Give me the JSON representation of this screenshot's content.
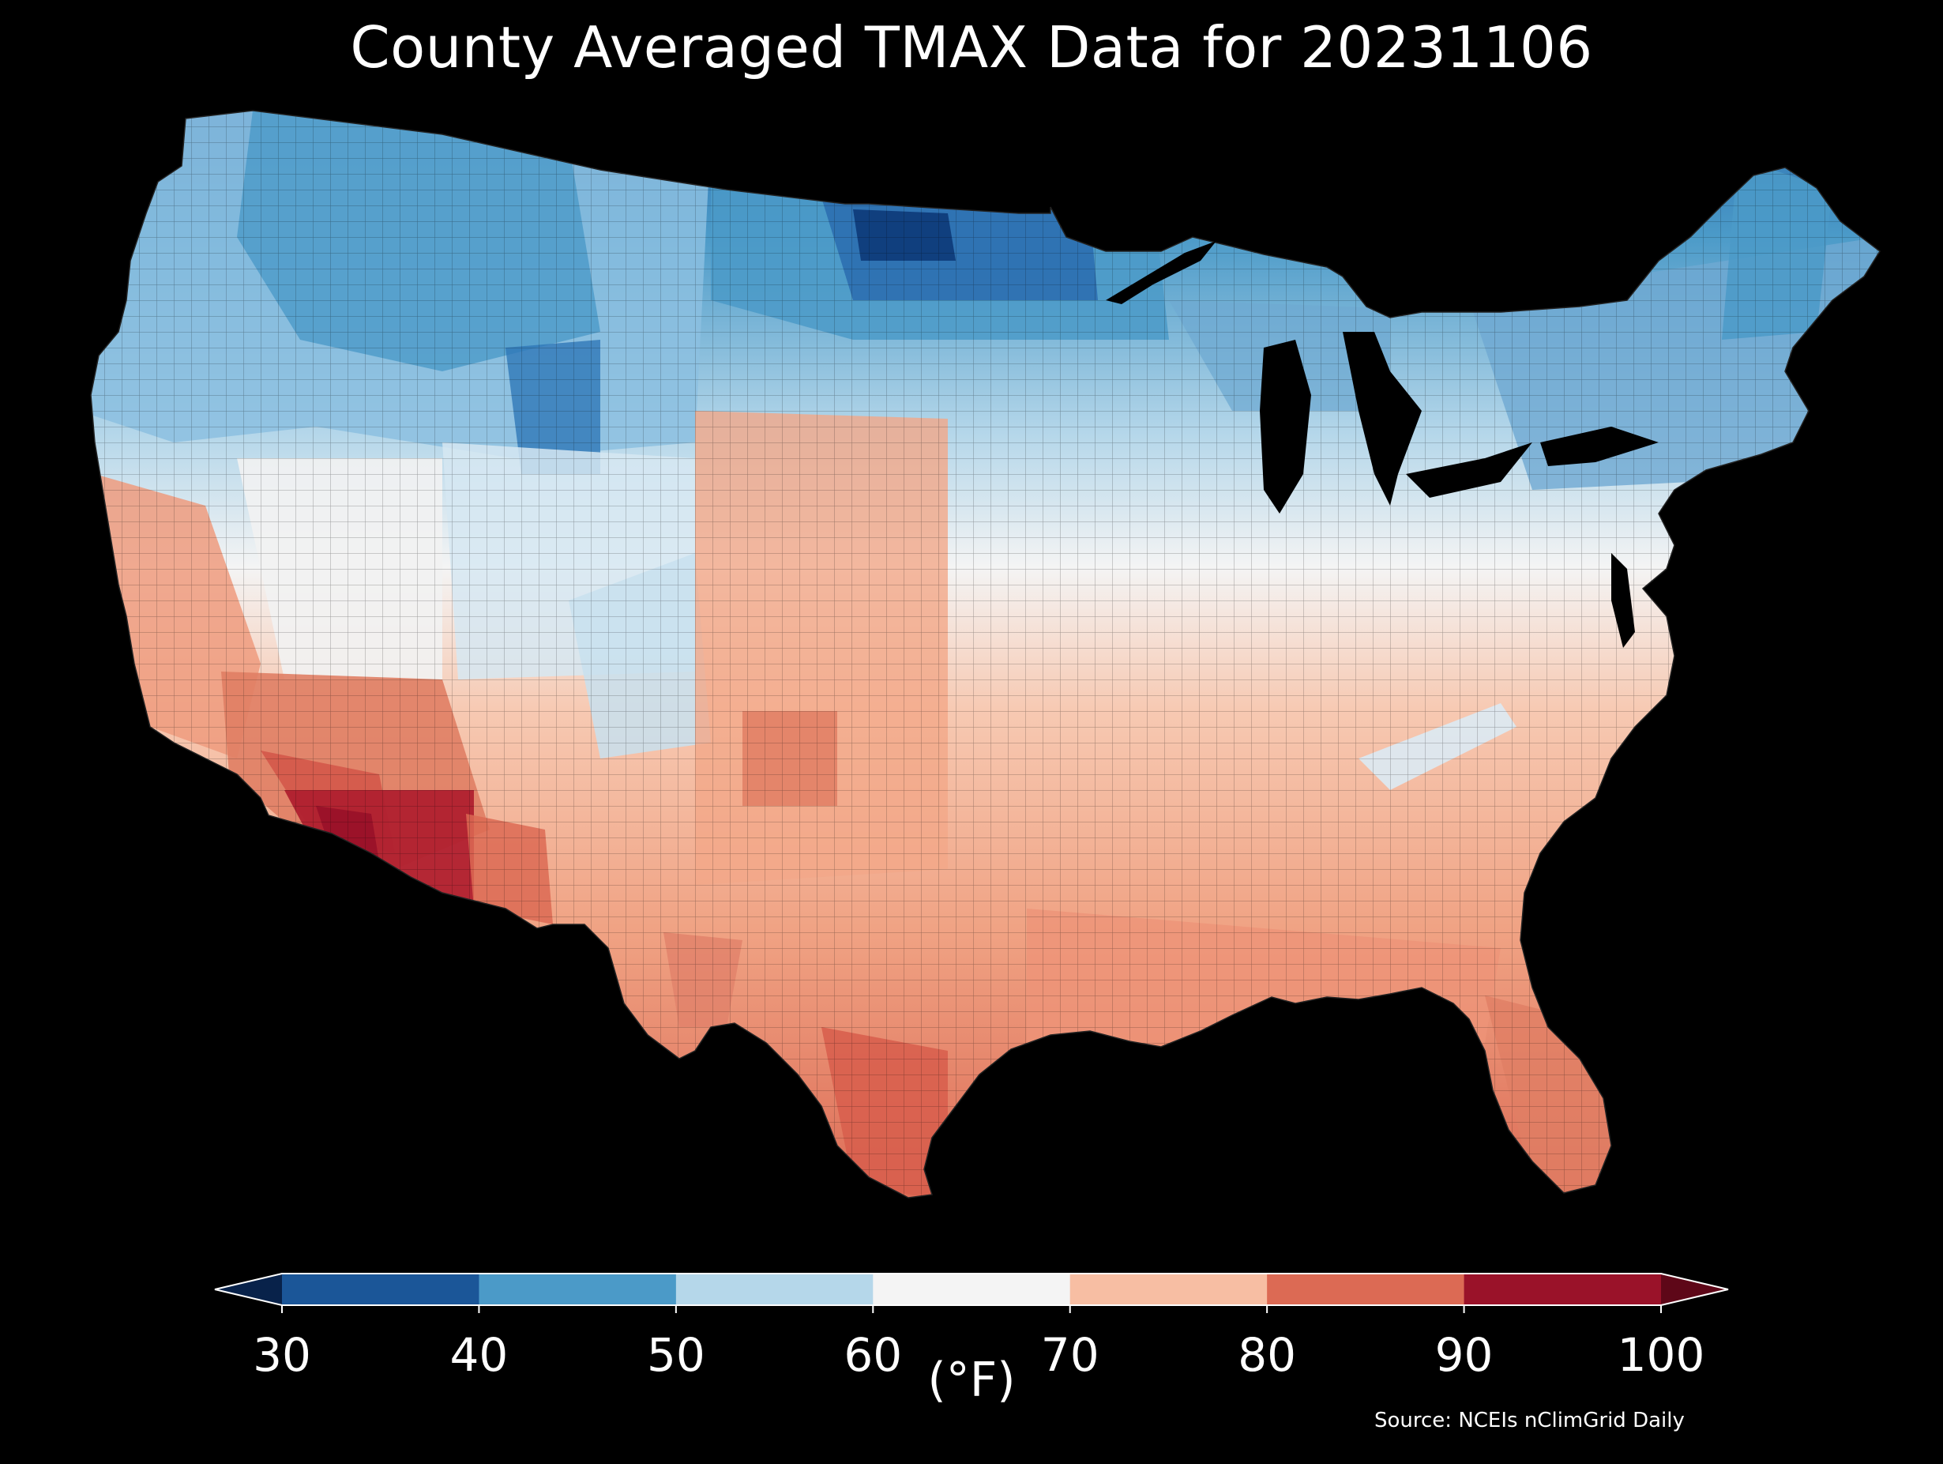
{
  "title": "County Averaged TMAX Data for 20231106",
  "colorbar": {
    "unit_label": "(°F)",
    "ticks": [
      "30",
      "40",
      "50",
      "60",
      "70",
      "80",
      "90",
      "100"
    ],
    "bins": [
      {
        "range": "<30",
        "color": "#08224a"
      },
      {
        "range": "30-40",
        "color": "#1b5698"
      },
      {
        "range": "40-50",
        "color": "#4b9ac8"
      },
      {
        "range": "50-60",
        "color": "#b5d7ea"
      },
      {
        "range": "60-70",
        "color": "#f4f4f4"
      },
      {
        "range": "70-80",
        "color": "#f7bea3"
      },
      {
        "range": "80-90",
        "color": "#dc6a54"
      },
      {
        "range": "90-100",
        "color": "#9a1229"
      },
      {
        "range": ">100",
        "color": "#5e0718"
      }
    ]
  },
  "source": "Source: NCEIs nClimGrid Daily"
}
